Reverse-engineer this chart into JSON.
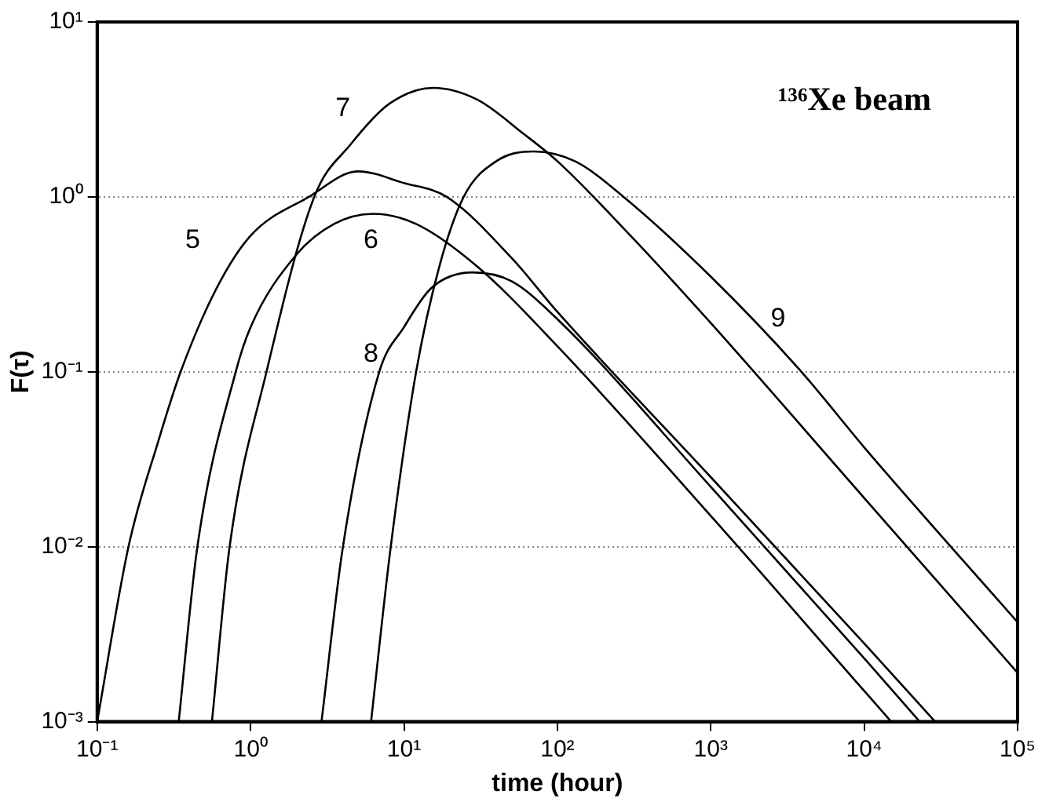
{
  "chart_data": {
    "type": "line",
    "xlabel": "time (hour)",
    "ylabel": "F(τ)",
    "annotations": [
      "¹³⁶Xe beam"
    ],
    "log": "xy",
    "grid": "y",
    "legend": false,
    "marker": "none",
    "line_style": "solid",
    "xlim": [
      0.1,
      100000
    ],
    "ylim": [
      0.001,
      10
    ],
    "xticks": [
      {
        "value": 0.1,
        "label": "10⁻¹"
      },
      {
        "value": 1,
        "label": "10⁰"
      },
      {
        "value": 10,
        "label": "10¹"
      },
      {
        "value": 100,
        "label": "10²"
      },
      {
        "value": 1000,
        "label": "10³"
      },
      {
        "value": 10000,
        "label": "10⁴"
      },
      {
        "value": 100000,
        "label": "10⁵"
      }
    ],
    "yticks": [
      {
        "value": 0.001,
        "label": "10⁻³"
      },
      {
        "value": 0.01,
        "label": "10⁻²"
      },
      {
        "value": 0.1,
        "label": "10⁻¹"
      },
      {
        "value": 1,
        "label": "10⁰"
      },
      {
        "value": 10,
        "label": "10¹"
      }
    ],
    "series": [
      {
        "name": "5",
        "color": "#000000",
        "x": [
          0.1,
          0.16,
          0.25,
          0.35,
          0.6,
          1,
          2.4,
          5,
          10,
          19,
          50,
          100,
          1000,
          10000,
          29000
        ],
        "values": [
          0.001,
          0.01,
          0.04,
          0.1,
          0.3,
          0.6,
          1.0,
          1.4,
          1.2,
          1.0,
          0.45,
          0.22,
          0.025,
          0.0028,
          0.001
        ]
      },
      {
        "name": "6",
        "color": "#000000",
        "x": [
          0.34,
          0.45,
          0.8,
          1,
          2,
          3.5,
          6.3,
          12,
          30,
          100,
          1000,
          10000,
          15000
        ],
        "values": [
          0.001,
          0.01,
          0.1,
          0.18,
          0.47,
          0.7,
          0.8,
          0.7,
          0.4,
          0.14,
          0.015,
          0.0015,
          0.001
        ]
      },
      {
        "name": "7",
        "color": "#000000",
        "x": [
          0.56,
          0.73,
          1.27,
          2.6,
          4.5,
          8,
          15.5,
          30,
          60,
          100,
          300,
          1000,
          10000,
          100000
        ],
        "values": [
          0.001,
          0.01,
          0.1,
          1,
          2.0,
          3.4,
          4.2,
          3.6,
          2.3,
          1.6,
          0.6,
          0.19,
          0.019,
          0.0019
        ]
      },
      {
        "name": "8",
        "color": "#000000",
        "x": [
          2.9,
          4.0,
          6.9,
          10,
          15,
          28,
          50,
          100,
          1000,
          10000,
          23000
        ],
        "values": [
          0.001,
          0.01,
          0.1,
          0.18,
          0.3,
          0.37,
          0.33,
          0.2,
          0.022,
          0.0023,
          0.001
        ]
      },
      {
        "name": "9",
        "color": "#000000",
        "x": [
          6.1,
          8.2,
          12,
          17,
          24.5,
          40,
          70,
          130,
          270,
          1000,
          3900,
          10000,
          100000
        ],
        "values": [
          0.001,
          0.01,
          0.1,
          0.4,
          1,
          1.6,
          1.82,
          1.6,
          1.0,
          0.35,
          0.1,
          0.037,
          0.0037
        ]
      }
    ]
  }
}
